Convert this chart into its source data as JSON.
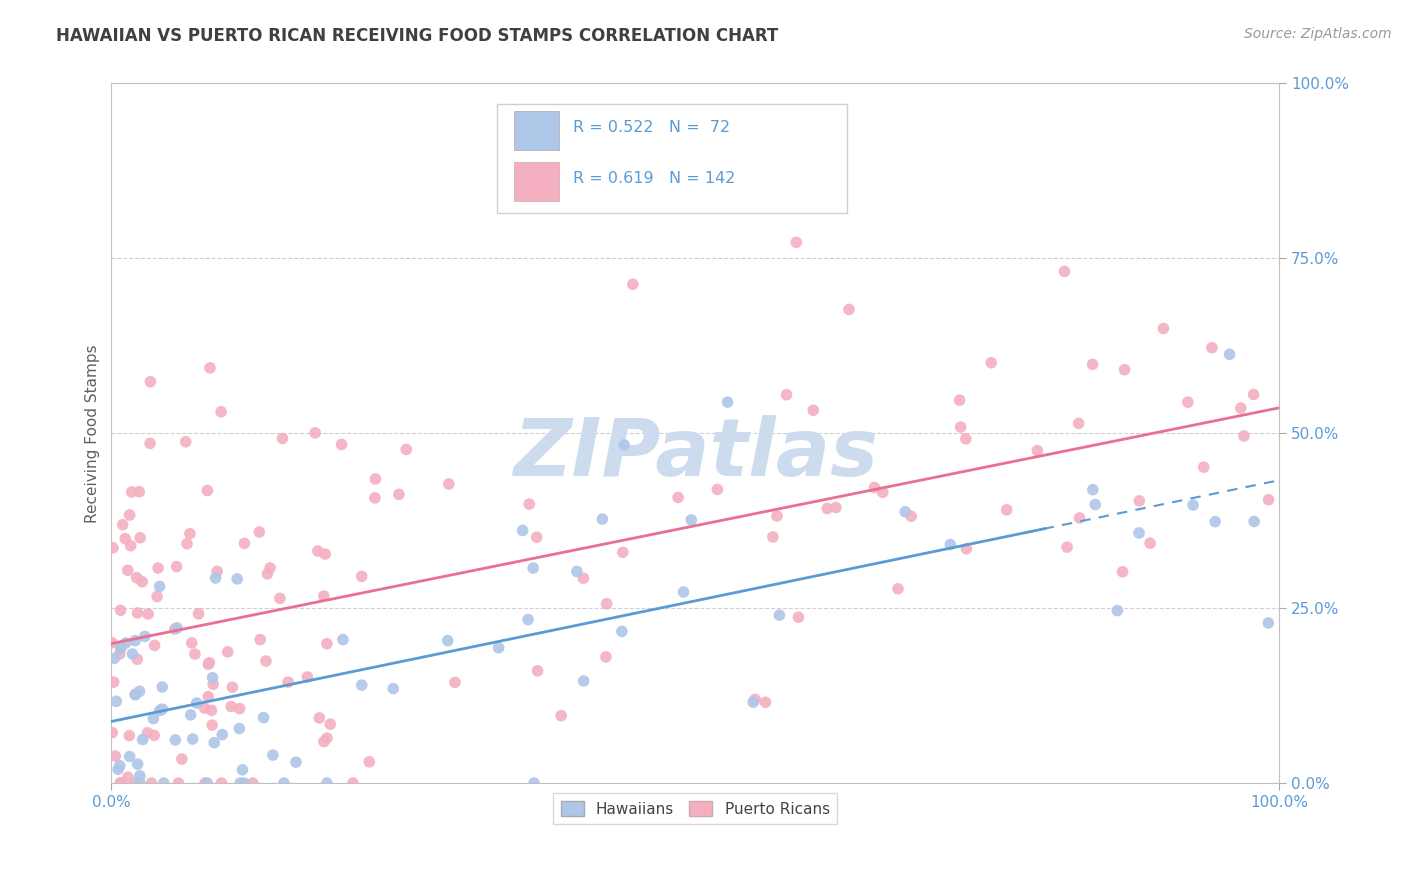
{
  "title": "HAWAIIAN VS PUERTO RICAN RECEIVING FOOD STAMPS CORRELATION CHART",
  "source": "Source: ZipAtlas.com",
  "ylabel": "Receiving Food Stamps",
  "hawaiian_color": "#aec6e8",
  "puerto_rican_color": "#f4afc0",
  "hawaiian_line_color": "#5b9bd5",
  "puerto_rican_line_color": "#e87090",
  "hawaiian_R": 0.522,
  "hawaiian_N": 72,
  "puerto_rican_R": 0.619,
  "puerto_rican_N": 142,
  "watermark_text": "ZIPatlas",
  "watermark_color": "#ccdcee",
  "background_color": "#ffffff",
  "grid_color": "#d0d0d0",
  "title_color": "#404040",
  "axis_label_color": "#606060",
  "tick_label_color": "#5b9bd5",
  "legend_text_color_blue": "#5b9bd5",
  "legend_border_color": "#d0d0d0",
  "bottom_legend_hawaiian": "Hawaiians",
  "bottom_legend_puerto": "Puerto Ricans"
}
